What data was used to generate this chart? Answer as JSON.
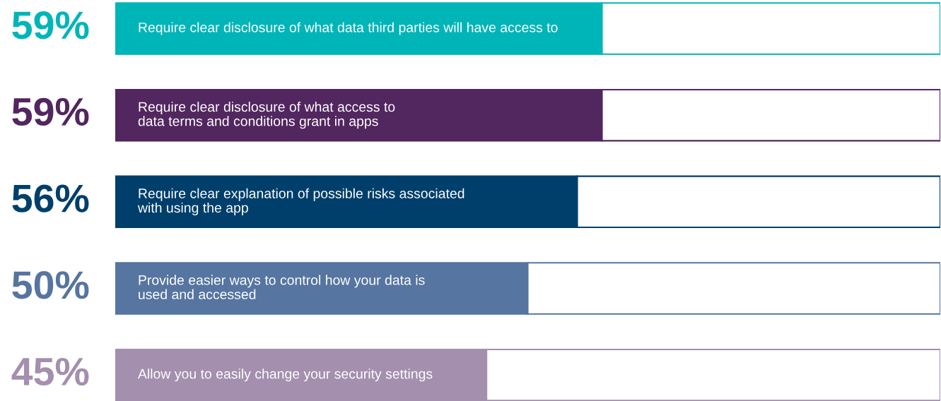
{
  "chart_data": {
    "type": "bar",
    "orientation": "horizontal",
    "stacked": true,
    "categories": [
      "Require clear disclosure of what data third parties will have access to",
      "Require clear disclosure of what access to\ndata terms and conditions grant in apps",
      "Require clear explanation of possible risks associated\nwith using the app",
      "Provide easier ways to control how your data is\nused and accessed",
      "Allow you to easily change your security settings"
    ],
    "series": [
      {
        "colors": [
          "#00b5b8",
          "#52265f",
          "#003f6b",
          "#5675a0",
          "#a48faf"
        ],
        "values": [
          59,
          59,
          56,
          50,
          45
        ],
        "value_labels": [
          "59%",
          "59%",
          "56%",
          "50%",
          "45%"
        ]
      },
      {
        "color": "#ffffff",
        "values": [
          41,
          41,
          44,
          50,
          55
        ]
      }
    ],
    "xlim": [
      0,
      100
    ]
  }
}
